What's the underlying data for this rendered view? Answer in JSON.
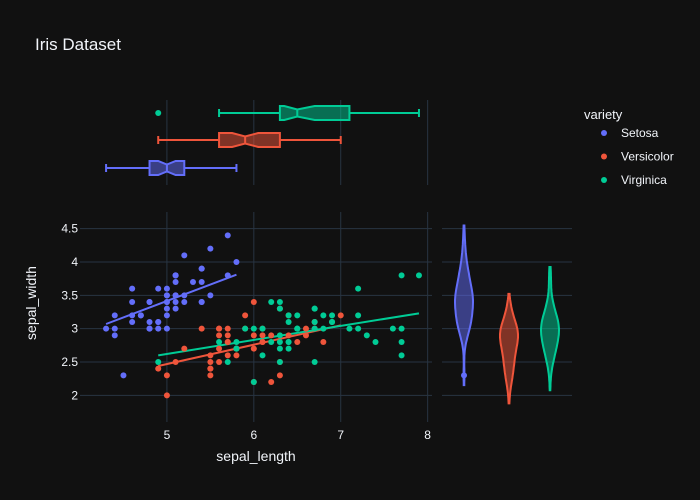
{
  "chart_data": {
    "type": "scatter",
    "title": "Iris Dataset",
    "xlabel": "sepal_length",
    "ylabel": "sepal_width",
    "xlim": [
      4.0,
      8.05
    ],
    "ylim": [
      1.6,
      4.75
    ],
    "xticks": [
      5,
      6,
      7,
      8
    ],
    "yticks": [
      2,
      2.5,
      3,
      3.5,
      4,
      4.5
    ],
    "grid": true,
    "legend": {
      "title": "variety",
      "placement": "top-right"
    },
    "background": "#111111",
    "series": [
      {
        "name": "Setosa",
        "color": "#636efa",
        "points": [
          [
            5.1,
            3.5
          ],
          [
            4.9,
            3.0
          ],
          [
            4.7,
            3.2
          ],
          [
            4.6,
            3.1
          ],
          [
            5.0,
            3.6
          ],
          [
            5.4,
            3.9
          ],
          [
            4.6,
            3.4
          ],
          [
            5.0,
            3.4
          ],
          [
            4.4,
            2.9
          ],
          [
            4.9,
            3.1
          ],
          [
            5.4,
            3.7
          ],
          [
            4.8,
            3.4
          ],
          [
            4.8,
            3.0
          ],
          [
            4.3,
            3.0
          ],
          [
            5.8,
            4.0
          ],
          [
            5.7,
            4.4
          ],
          [
            5.4,
            3.9
          ],
          [
            5.1,
            3.5
          ],
          [
            5.7,
            3.8
          ],
          [
            5.1,
            3.8
          ],
          [
            5.4,
            3.4
          ],
          [
            5.1,
            3.7
          ],
          [
            4.6,
            3.6
          ],
          [
            5.1,
            3.3
          ],
          [
            4.8,
            3.4
          ],
          [
            5.0,
            3.0
          ],
          [
            5.0,
            3.4
          ],
          [
            5.2,
            3.5
          ],
          [
            5.2,
            3.4
          ],
          [
            4.7,
            3.2
          ],
          [
            4.8,
            3.1
          ],
          [
            5.4,
            3.4
          ],
          [
            5.2,
            4.1
          ],
          [
            5.5,
            4.2
          ],
          [
            4.9,
            3.1
          ],
          [
            5.0,
            3.2
          ],
          [
            5.5,
            3.5
          ],
          [
            4.9,
            3.6
          ],
          [
            4.4,
            3.0
          ],
          [
            5.1,
            3.4
          ],
          [
            5.0,
            3.5
          ],
          [
            4.5,
            2.3
          ],
          [
            4.4,
            3.2
          ],
          [
            5.0,
            3.5
          ],
          [
            5.1,
            3.8
          ],
          [
            4.8,
            3.0
          ],
          [
            5.1,
            3.8
          ],
          [
            4.6,
            3.2
          ],
          [
            5.3,
            3.7
          ],
          [
            5.0,
            3.3
          ]
        ],
        "trendline": [
          [
            4.3,
            3.07
          ],
          [
            5.8,
            3.81
          ]
        ],
        "box": {
          "min": 4.3,
          "q1": 4.8,
          "median": 5.0,
          "q3": 5.2,
          "max": 5.8,
          "notch_low": 4.9,
          "notch_high": 5.1,
          "outliers": []
        },
        "violin": {
          "min": 2.3,
          "max": 4.4,
          "median": 3.4,
          "q1": 3.2,
          "q3": 3.675,
          "outliers": [
            2.3
          ]
        }
      },
      {
        "name": "Versicolor",
        "color": "#ef553b",
        "points": [
          [
            7.0,
            3.2
          ],
          [
            6.4,
            3.2
          ],
          [
            6.9,
            3.1
          ],
          [
            5.5,
            2.3
          ],
          [
            6.5,
            2.8
          ],
          [
            5.7,
            2.8
          ],
          [
            6.3,
            3.3
          ],
          [
            4.9,
            2.4
          ],
          [
            6.6,
            2.9
          ],
          [
            5.2,
            2.7
          ],
          [
            5.0,
            2.0
          ],
          [
            5.9,
            3.0
          ],
          [
            6.0,
            2.2
          ],
          [
            6.1,
            2.9
          ],
          [
            5.6,
            2.9
          ],
          [
            6.7,
            3.1
          ],
          [
            5.6,
            3.0
          ],
          [
            5.8,
            2.7
          ],
          [
            6.2,
            2.2
          ],
          [
            5.6,
            2.5
          ],
          [
            5.9,
            3.2
          ],
          [
            6.1,
            2.8
          ],
          [
            6.3,
            2.5
          ],
          [
            6.1,
            2.8
          ],
          [
            6.4,
            2.9
          ],
          [
            6.6,
            3.0
          ],
          [
            6.8,
            2.8
          ],
          [
            6.7,
            3.0
          ],
          [
            6.0,
            2.9
          ],
          [
            5.7,
            2.6
          ],
          [
            5.5,
            2.4
          ],
          [
            5.5,
            2.4
          ],
          [
            5.8,
            2.7
          ],
          [
            6.0,
            2.7
          ],
          [
            5.4,
            3.0
          ],
          [
            6.0,
            3.4
          ],
          [
            6.7,
            3.1
          ],
          [
            6.3,
            2.3
          ],
          [
            5.6,
            3.0
          ],
          [
            5.5,
            2.5
          ],
          [
            5.5,
            2.6
          ],
          [
            6.1,
            3.0
          ],
          [
            5.8,
            2.6
          ],
          [
            5.0,
            2.3
          ],
          [
            5.6,
            2.7
          ],
          [
            5.7,
            3.0
          ],
          [
            5.7,
            2.9
          ],
          [
            6.2,
            2.9
          ],
          [
            5.1,
            2.5
          ],
          [
            5.7,
            2.8
          ]
        ],
        "trendline": [
          [
            4.9,
            2.44
          ],
          [
            7.0,
            3.05
          ]
        ],
        "box": {
          "min": 4.9,
          "q1": 5.6,
          "median": 5.9,
          "q3": 6.3,
          "max": 7.0,
          "notch_low": 5.75,
          "notch_high": 6.05,
          "outliers": []
        },
        "violin": {
          "min": 2.0,
          "max": 3.4,
          "median": 2.8,
          "q1": 2.5,
          "q3": 3.0,
          "outliers": []
        }
      },
      {
        "name": "Virginica",
        "color": "#00cc96",
        "points": [
          [
            6.3,
            3.3
          ],
          [
            5.8,
            2.7
          ],
          [
            7.1,
            3.0
          ],
          [
            6.3,
            2.9
          ],
          [
            6.5,
            3.0
          ],
          [
            7.6,
            3.0
          ],
          [
            4.9,
            2.5
          ],
          [
            7.3,
            2.9
          ],
          [
            6.7,
            2.5
          ],
          [
            7.2,
            3.6
          ],
          [
            6.5,
            3.2
          ],
          [
            6.4,
            2.7
          ],
          [
            6.8,
            3.0
          ],
          [
            5.7,
            2.5
          ],
          [
            5.8,
            2.8
          ],
          [
            6.4,
            3.2
          ],
          [
            6.5,
            3.0
          ],
          [
            7.7,
            3.8
          ],
          [
            7.7,
            2.6
          ],
          [
            6.0,
            2.2
          ],
          [
            6.9,
            3.2
          ],
          [
            5.6,
            2.8
          ],
          [
            7.7,
            2.8
          ],
          [
            6.3,
            2.7
          ],
          [
            6.7,
            3.3
          ],
          [
            7.2,
            3.2
          ],
          [
            6.2,
            2.8
          ],
          [
            6.1,
            3.0
          ],
          [
            6.4,
            2.8
          ],
          [
            7.2,
            3.0
          ],
          [
            7.4,
            2.8
          ],
          [
            7.9,
            3.8
          ],
          [
            6.4,
            2.8
          ],
          [
            6.3,
            2.8
          ],
          [
            6.1,
            2.6
          ],
          [
            7.7,
            3.0
          ],
          [
            6.3,
            3.4
          ],
          [
            6.4,
            3.1
          ],
          [
            6.0,
            3.0
          ],
          [
            6.9,
            3.1
          ],
          [
            6.7,
            3.1
          ],
          [
            6.9,
            3.1
          ],
          [
            5.8,
            2.7
          ],
          [
            6.8,
            3.2
          ],
          [
            6.7,
            3.3
          ],
          [
            6.7,
            3.0
          ],
          [
            6.3,
            2.5
          ],
          [
            6.5,
            3.0
          ],
          [
            6.2,
            3.4
          ],
          [
            5.9,
            3.0
          ]
        ],
        "trendline": [
          [
            4.9,
            2.6
          ],
          [
            7.9,
            3.23
          ]
        ],
        "box": {
          "min": 5.6,
          "q1": 6.3,
          "median": 6.5,
          "q3": 7.1,
          "max": 7.9,
          "notch_low": 6.35,
          "notch_high": 6.7,
          "outliers": [
            4.9
          ]
        },
        "violin": {
          "min": 2.2,
          "max": 3.8,
          "median": 3.0,
          "q1": 2.8,
          "q3": 3.2,
          "outliers": []
        }
      }
    ]
  }
}
